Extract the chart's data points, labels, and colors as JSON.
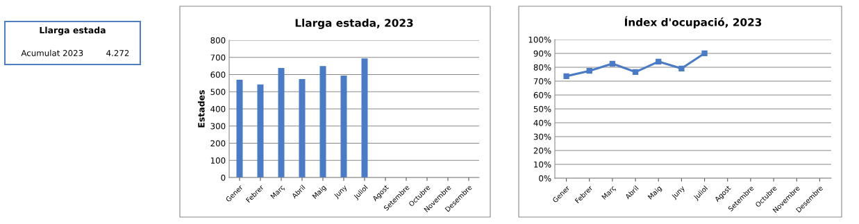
{
  "chart_data": [
    {
      "type": "other",
      "title": "Llarga estada",
      "annotations": [
        "Acumulat 2023",
        "4.272"
      ]
    },
    {
      "type": "bar",
      "title": "Llarga estada, 2023",
      "ylabel": "Estades",
      "categories": [
        "Gener",
        "Febrer",
        "Març",
        "Abril",
        "Maig",
        "Juny",
        "Juliol",
        "Agost",
        "Setembre",
        "Octubre",
        "Novembre",
        "Desembre"
      ],
      "values": [
        570,
        542,
        638,
        574,
        650,
        594,
        694,
        null,
        null,
        null,
        null,
        null
      ],
      "color": "#4a7bc4",
      "ylim": [
        0,
        800
      ],
      "yticks": [
        0,
        100,
        200,
        300,
        400,
        500,
        600,
        700,
        800
      ],
      "grid": "y"
    },
    {
      "type": "line",
      "title": "Índex d'ocupació, 2023",
      "categories": [
        "Gener",
        "Febrer",
        "Març",
        "Abril",
        "Maig",
        "Juny",
        "Juliol",
        "Agost",
        "Setembre",
        "Octubre",
        "Novembre",
        "Desembre"
      ],
      "values": [
        73.6,
        77.4,
        82.6,
        76.6,
        84.1,
        79.1,
        90.1,
        null,
        null,
        null,
        null,
        null
      ],
      "color": "#4a7bc4",
      "marker": "square",
      "ylim": [
        0,
        100
      ],
      "yticks": [
        {
          "value": 0,
          "label": "0%"
        },
        {
          "value": 10,
          "label": "10%"
        },
        {
          "value": 20,
          "label": "20%"
        },
        {
          "value": 30,
          "label": "30%"
        },
        {
          "value": 40,
          "label": "40%"
        },
        {
          "value": 50,
          "label": "50%"
        },
        {
          "value": 60,
          "label": "60%"
        },
        {
          "value": 70,
          "label": "70%"
        },
        {
          "value": 80,
          "label": "80%"
        },
        {
          "value": 90,
          "label": "90%"
        },
        {
          "value": 100,
          "label": "100%"
        }
      ],
      "grid": "y"
    }
  ]
}
